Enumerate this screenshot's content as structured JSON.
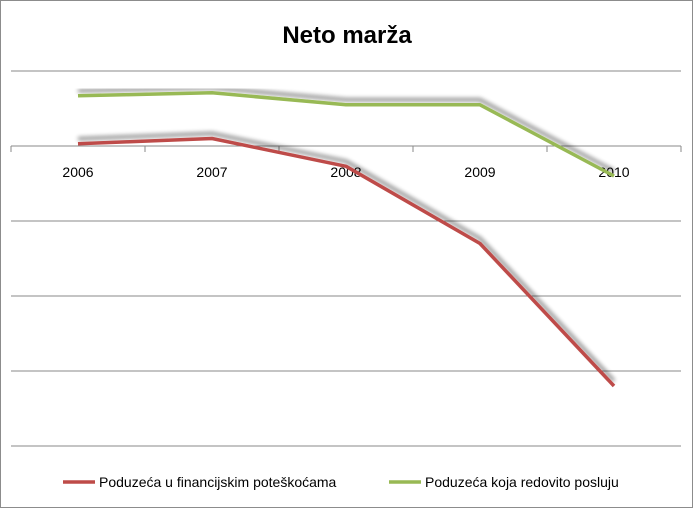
{
  "chart_data": {
    "type": "line",
    "title": "Neto marža",
    "categories": [
      "2006",
      "2007",
      "2008",
      "2009",
      "2010"
    ],
    "ylim": [
      -4,
      1
    ],
    "grid": true,
    "legend": "bottom",
    "series": [
      {
        "name": "Poduzeća u financijskim poteškoćama",
        "color": "#be4b48",
        "values": [
          0.03,
          0.1,
          -0.27,
          -1.3,
          -3.2
        ]
      },
      {
        "name": "Poduzeća koja redovito posluju",
        "color": "#98b954",
        "values": [
          0.67,
          0.71,
          0.55,
          0.55,
          -0.4
        ]
      }
    ]
  }
}
